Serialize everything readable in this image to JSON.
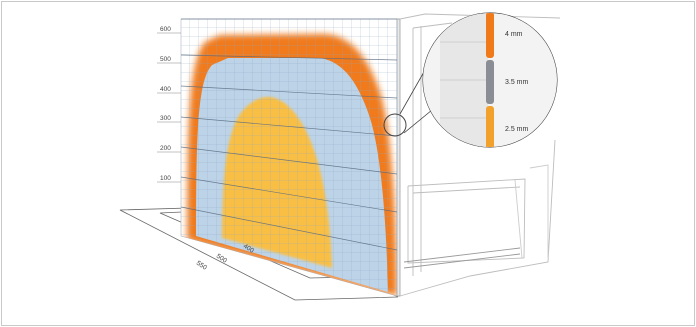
{
  "axis": {
    "ticks": [
      {
        "id": "t600",
        "label": "600",
        "value": 600
      },
      {
        "id": "t500",
        "label": "500",
        "value": 500
      },
      {
        "id": "t400",
        "label": "400",
        "value": 400
      },
      {
        "id": "t300",
        "label": "300",
        "value": 300
      },
      {
        "id": "t200",
        "label": "200",
        "value": 200
      },
      {
        "id": "t100",
        "label": "100",
        "value": 100
      }
    ]
  },
  "depth_labels": {
    "d1": "400",
    "d2": "500",
    "d3": "550"
  },
  "callout": {
    "top": "4 mm",
    "middle": "3.5 mm",
    "bottom": "2.5 mm"
  },
  "colors": {
    "outer_zone": "#f07a1a",
    "middle_zone": "#bcd3e8",
    "inner_zone": "#f9bf45",
    "callout_top": "#f07a1a",
    "callout_middle": "#8a8d94",
    "callout_bottom": "#f1a12c"
  }
}
